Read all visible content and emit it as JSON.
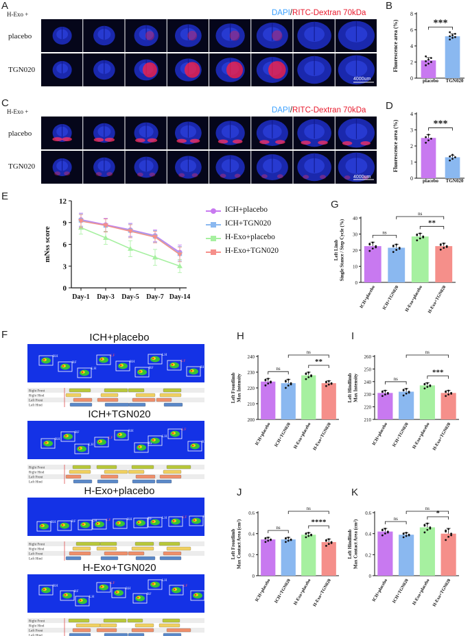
{
  "panels": {
    "A": {
      "letter": "A",
      "prefix": "H-Exo +",
      "stain_dapi": "DAPI",
      "stain_sep": "/",
      "stain_dextran": "RITC-Dextran 70kDa",
      "rows": [
        "placebo",
        "TGN020"
      ],
      "scale_bar": "4000um"
    },
    "C": {
      "letter": "C",
      "prefix": "H-Exo +",
      "stain_dapi": "DAPI",
      "stain_sep": "/",
      "stain_dextran": "RITC-Dextran 70kDa",
      "rows": [
        "placebo",
        "TGN020"
      ],
      "scale_bar": "4000um"
    },
    "F": {
      "letter": "F",
      "groups": [
        "ICH+placebo",
        "ICH+TGN020",
        "H-Exo+placebo",
        "H-Exo+TGN020"
      ],
      "paw_labels": [
        "RH",
        "RF",
        "LH",
        "LF"
      ],
      "gait_rows": [
        "Right Front",
        "Right Hind",
        "Left Front",
        "Left Hind"
      ]
    }
  },
  "colors": {
    "violet": "#c879f0",
    "blue": "#8ab8f0",
    "green": "#a6f0a0",
    "salmon": "#f58f8a",
    "dapi": "#3aa0ff",
    "dextran": "#e8192c"
  },
  "chart_data": [
    {
      "id": "B",
      "type": "bar",
      "categories": [
        "placebo",
        "TGN020"
      ],
      "values": [
        2.2,
        5.2
      ],
      "errors": [
        0.35,
        0.3
      ],
      "points": [
        [
          1.6,
          1.8,
          2.0,
          2.1,
          2.3,
          2.5,
          2.7
        ],
        [
          4.8,
          5.0,
          5.1,
          5.2,
          5.3,
          5.5,
          5.7
        ]
      ],
      "ylabel": "Fluorescence area (%)",
      "ylim": [
        0,
        8
      ],
      "yticks": [
        0,
        2,
        4,
        6,
        8
      ],
      "sig": [
        {
          "from": 0,
          "to": 1,
          "label": "***"
        }
      ]
    },
    {
      "id": "D",
      "type": "bar",
      "categories": [
        "placebo",
        "TGN020"
      ],
      "values": [
        2.5,
        1.3
      ],
      "errors": [
        0.2,
        0.12
      ],
      "points": [
        [
          2.2,
          2.35,
          2.45,
          2.55,
          2.7
        ],
        [
          1.1,
          1.2,
          1.3,
          1.35,
          1.45
        ]
      ],
      "ylabel": "Fluorescence area (%)",
      "ylim": [
        0,
        4
      ],
      "yticks": [
        0,
        1,
        2,
        3,
        4
      ],
      "sig": [
        {
          "from": 0,
          "to": 1,
          "label": "***"
        }
      ]
    },
    {
      "id": "E",
      "type": "line",
      "categories": [
        "Day-1",
        "Day-3",
        "Day-5",
        "Day-7",
        "Day-14"
      ],
      "ylabel": "mNss score",
      "ylim": [
        0,
        12
      ],
      "yticks": [
        0,
        3,
        6,
        9,
        12
      ],
      "series": [
        {
          "name": "ICH+placebo",
          "marker": "circle",
          "values": [
            9.4,
            8.7,
            8.0,
            7.2,
            4.9
          ],
          "errors": [
            0.9,
            0.9,
            0.9,
            0.8,
            1.0
          ]
        },
        {
          "name": "ICH+TGN020",
          "marker": "square",
          "values": [
            9.3,
            8.6,
            7.9,
            7.1,
            4.7
          ],
          "errors": [
            0.9,
            0.9,
            0.9,
            0.8,
            1.0
          ]
        },
        {
          "name": "H-Exo+placebo",
          "marker": "triangle",
          "values": [
            8.3,
            6.9,
            5.4,
            4.2,
            3.0
          ],
          "errors": [
            0.9,
            0.9,
            1.1,
            1.1,
            0.9
          ]
        },
        {
          "name": "H-Exo+TGN020",
          "marker": "triangle-down",
          "values": [
            9.2,
            8.6,
            7.8,
            7.0,
            4.6
          ],
          "errors": [
            0.9,
            0.9,
            0.9,
            0.8,
            1.0
          ]
        }
      ]
    },
    {
      "id": "G",
      "type": "bar",
      "categories": [
        "ICH+placebo",
        "ICH+TGN020",
        "H-Exo+placebo",
        "H-Exo+TGN020"
      ],
      "values": [
        22.5,
        21.5,
        28.5,
        22.5
      ],
      "errors": [
        2.5,
        2.2,
        2.0,
        1.8
      ],
      "ylabel": [
        "Left Limb",
        "Single Stance / Step Cycle (%)"
      ],
      "ylim": [
        0,
        40
      ],
      "yticks": [
        0,
        10,
        20,
        30,
        40
      ],
      "sig": [
        {
          "from": 0,
          "to": 1,
          "label": "ns"
        },
        {
          "from": 2,
          "to": 3,
          "label": "**"
        },
        {
          "from": 1,
          "to": 3,
          "label": "ns",
          "level": 2
        }
      ]
    },
    {
      "id": "H",
      "type": "bar",
      "categories": [
        "ICH+placebo",
        "ICH+TGN020",
        "H-Exo+placebo",
        "H-Exo+TGN020"
      ],
      "values": [
        224,
        223,
        228,
        223
      ],
      "errors": [
        2,
        2.5,
        2,
        1.5
      ],
      "ylabel": [
        "Left Frontlimb",
        "Max Intensity"
      ],
      "ylim": [
        200,
        240
      ],
      "yticks": [
        200,
        210,
        220,
        230,
        240
      ],
      "sig": [
        {
          "from": 0,
          "to": 1,
          "label": "ns"
        },
        {
          "from": 2,
          "to": 3,
          "label": "**"
        },
        {
          "from": 1,
          "to": 3,
          "label": "ns",
          "level": 2
        }
      ]
    },
    {
      "id": "I",
      "type": "bar",
      "categories": [
        "ICH+placebo",
        "ICH+TGN020",
        "H-Exo+placebo",
        "H-Exo+TGN020"
      ],
      "values": [
        231,
        232,
        237,
        231
      ],
      "errors": [
        2,
        2.5,
        2,
        2
      ],
      "ylabel": [
        "Left Hindlimb",
        "Max Intensity"
      ],
      "ylim": [
        210,
        260
      ],
      "yticks": [
        210,
        220,
        230,
        240,
        250,
        260
      ],
      "sig": [
        {
          "from": 0,
          "to": 1,
          "label": "ns"
        },
        {
          "from": 2,
          "to": 3,
          "label": "***"
        },
        {
          "from": 1,
          "to": 3,
          "label": "ns",
          "level": 2
        }
      ]
    },
    {
      "id": "J",
      "type": "bar",
      "categories": [
        "ICH+placebo",
        "ICH+TGN020",
        "H-Exo+placebo",
        "H-Exo+TGN020"
      ],
      "values": [
        0.345,
        0.345,
        0.39,
        0.32
      ],
      "errors": [
        0.02,
        0.02,
        0.02,
        0.03
      ],
      "ylabel": [
        "Left Frontlimb",
        "Max Contact Area (cm²)"
      ],
      "ylim": [
        0,
        0.6
      ],
      "yticks": [
        0,
        0.2,
        0.4,
        0.6
      ],
      "sig": [
        {
          "from": 0,
          "to": 1,
          "label": "ns"
        },
        {
          "from": 2,
          "to": 3,
          "label": "****"
        },
        {
          "from": 1,
          "to": 3,
          "label": "ns",
          "level": 2
        }
      ]
    },
    {
      "id": "K",
      "type": "bar",
      "categories": [
        "ICH+placebo",
        "ICH+TGN020",
        "H-Exo+placebo",
        "H-Exo+TGN020"
      ],
      "values": [
        0.42,
        0.39,
        0.46,
        0.4
      ],
      "errors": [
        0.03,
        0.02,
        0.04,
        0.05
      ],
      "ylabel": [
        "Left Hindlimb",
        "Max Contact Area (cm²)"
      ],
      "ylim": [
        0,
        0.6
      ],
      "yticks": [
        0,
        0.2,
        0.4,
        0.6
      ],
      "sig": [
        {
          "from": 0,
          "to": 1,
          "label": "ns"
        },
        {
          "from": 2,
          "to": 3,
          "label": "*"
        },
        {
          "from": 1,
          "to": 3,
          "label": "ns",
          "level": 2
        }
      ]
    }
  ]
}
